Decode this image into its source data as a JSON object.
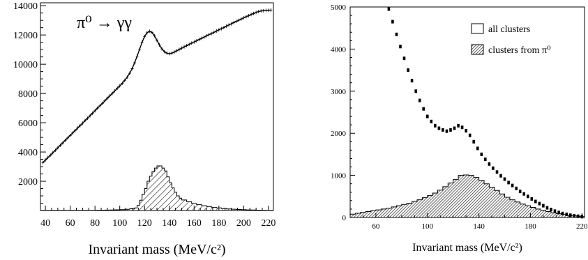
{
  "chart_data": [
    {
      "type": "bar",
      "annotation": "π⁰ → γγ",
      "xlabel": "Invariant mass  (MeV/c²)",
      "xlim": [
        36,
        224
      ],
      "ylim": [
        0,
        14200
      ],
      "x_ticks": [
        "40",
        "60",
        "80",
        "100",
        "120",
        "140",
        "160",
        "180",
        "200",
        "220"
      ],
      "y_ticks": [
        "2000",
        "4000",
        "6000",
        "8000",
        "10000",
        "12000",
        "14000"
      ],
      "series": [
        {
          "kind": "points",
          "x": [
            38,
            40,
            42,
            44,
            46,
            48,
            50,
            52,
            54,
            56,
            58,
            60,
            62,
            64,
            66,
            68,
            70,
            72,
            74,
            76,
            78,
            80,
            82,
            84,
            86,
            88,
            90,
            92,
            94,
            96,
            98,
            100,
            102,
            104,
            106,
            108,
            110,
            112,
            114,
            116,
            118,
            120,
            122,
            124,
            126,
            128,
            130,
            132,
            134,
            136,
            138,
            140,
            142,
            144,
            146,
            148,
            150,
            152,
            154,
            156,
            158,
            160,
            162,
            164,
            166,
            168,
            170,
            172,
            174,
            176,
            178,
            180,
            182,
            184,
            186,
            188,
            190,
            192,
            194,
            196,
            198,
            200,
            202,
            204,
            206,
            208,
            210,
            212,
            214,
            216,
            218,
            220,
            222
          ],
          "y": [
            3280,
            3450,
            3620,
            3780,
            3950,
            4120,
            4290,
            4460,
            4620,
            4800,
            4960,
            5130,
            5300,
            5470,
            5640,
            5810,
            5970,
            6150,
            6310,
            6480,
            6650,
            6820,
            7000,
            7160,
            7330,
            7500,
            7680,
            7840,
            8010,
            8180,
            8360,
            8520,
            8700,
            8900,
            9120,
            9380,
            9700,
            10100,
            10550,
            11020,
            11500,
            11900,
            12150,
            12250,
            12170,
            11950,
            11630,
            11320,
            11050,
            10860,
            10760,
            10720,
            10760,
            10830,
            10920,
            11010,
            11100,
            11190,
            11270,
            11360,
            11440,
            11520,
            11600,
            11690,
            11770,
            11850,
            11940,
            12020,
            12100,
            12180,
            12270,
            12350,
            12430,
            12510,
            12600,
            12680,
            12760,
            12850,
            12930,
            13010,
            13090,
            13170,
            13250,
            13320,
            13400,
            13470,
            13540,
            13600,
            13640,
            13660,
            13680,
            13690,
            13700
          ]
        },
        {
          "kind": "hatched-histogram",
          "x": [
            36,
            40,
            44,
            48,
            52,
            56,
            60,
            64,
            68,
            72,
            76,
            80,
            84,
            88,
            92,
            96,
            100,
            104,
            108,
            112,
            114,
            116,
            118,
            120,
            122,
            124,
            126,
            128,
            130,
            132,
            134,
            136,
            138,
            140,
            142,
            144,
            146,
            148,
            150,
            154,
            158,
            162,
            166,
            170,
            174,
            178,
            182,
            186,
            190,
            194,
            198,
            202,
            206,
            210,
            214,
            218,
            222
          ],
          "y": [
            10,
            10,
            10,
            10,
            10,
            10,
            10,
            10,
            10,
            10,
            15,
            20,
            25,
            30,
            40,
            50,
            60,
            80,
            120,
            180,
            350,
            700,
            1100,
            1500,
            2000,
            2350,
            2650,
            2900,
            3050,
            3050,
            2900,
            2700,
            2300,
            1900,
            1550,
            1250,
            1000,
            850,
            720,
            600,
            480,
            400,
            330,
            270,
            220,
            180,
            140,
            110,
            90,
            70,
            55,
            45,
            35,
            25,
            20,
            15,
            10
          ]
        }
      ]
    },
    {
      "type": "bar",
      "xlabel": "Invariant mass  (MeV/c²)",
      "xlim": [
        40,
        222
      ],
      "ylim": [
        0,
        5000
      ],
      "x_ticks": [
        "60",
        "100",
        "140",
        "180",
        "220"
      ],
      "y_ticks": [
        "0",
        "1000",
        "2000",
        "3000",
        "4000",
        "5000"
      ],
      "legend": [
        "all clusters",
        "clusters from π⁰"
      ],
      "series": [
        {
          "name": "all clusters",
          "kind": "points",
          "x": [
            70,
            73,
            76,
            79,
            82,
            85,
            88,
            91,
            94,
            97,
            100,
            103,
            106,
            109,
            112,
            115,
            118,
            121,
            124,
            127,
            130,
            133,
            136,
            139,
            142,
            145,
            148,
            151,
            154,
            157,
            160,
            163,
            166,
            169,
            172,
            175,
            178,
            181,
            184,
            187,
            190,
            193,
            196,
            199,
            202,
            205,
            208,
            211,
            214,
            217,
            220
          ],
          "y": [
            4950,
            4650,
            4350,
            4060,
            3780,
            3500,
            3250,
            3000,
            2780,
            2580,
            2400,
            2280,
            2180,
            2120,
            2080,
            2050,
            2080,
            2120,
            2180,
            2140,
            2060,
            1950,
            1800,
            1640,
            1500,
            1380,
            1270,
            1170,
            1080,
            990,
            910,
            830,
            760,
            690,
            620,
            560,
            500,
            440,
            380,
            330,
            280,
            230,
            190,
            150,
            120,
            95,
            75,
            55,
            40,
            30,
            20
          ]
        },
        {
          "name": "clusters from π⁰",
          "kind": "hatched-histogram",
          "x": [
            40,
            44,
            48,
            52,
            56,
            60,
            64,
            68,
            72,
            76,
            80,
            84,
            88,
            92,
            96,
            100,
            104,
            108,
            112,
            116,
            120,
            124,
            128,
            132,
            136,
            140,
            144,
            148,
            152,
            156,
            160,
            164,
            168,
            172,
            176,
            180,
            184,
            188,
            192,
            196,
            200,
            204,
            208,
            212,
            216,
            220
          ],
          "y": [
            80,
            100,
            120,
            140,
            160,
            180,
            200,
            220,
            250,
            280,
            310,
            340,
            380,
            420,
            470,
            520,
            580,
            650,
            730,
            820,
            900,
            1000,
            1010,
            1000,
            950,
            880,
            800,
            720,
            640,
            560,
            480,
            420,
            370,
            320,
            280,
            240,
            200,
            170,
            140,
            110,
            90,
            70,
            55,
            40,
            30,
            20
          ]
        }
      ]
    }
  ]
}
